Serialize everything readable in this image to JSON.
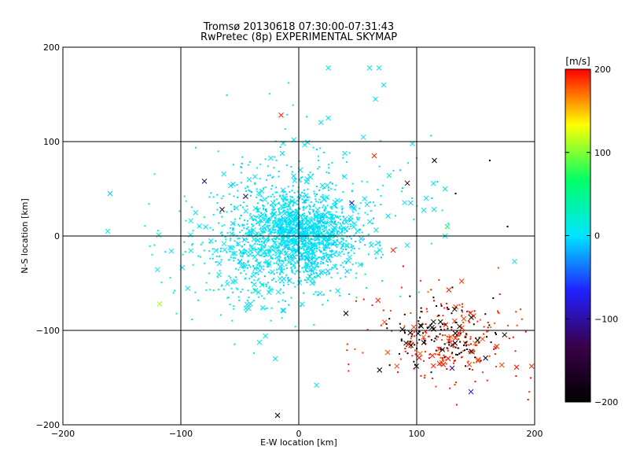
{
  "chart_data": {
    "type": "scatter",
    "title": "Tromsø 20130618 07:30:00-07:31:43",
    "subtitle": "RwPretec (8p) EXPERIMENTAL SKYMAP",
    "xlabel": "E-W location [km]",
    "ylabel": "N-S location [km]",
    "xlim": [
      -200,
      200
    ],
    "ylim": [
      -200,
      200
    ],
    "xticks": [
      -200,
      -100,
      0,
      100,
      200
    ],
    "yticks": [
      -200,
      -100,
      0,
      100,
      200
    ],
    "grid": true,
    "colorbar": {
      "label": "[m/s]",
      "range": [
        -200,
        200
      ],
      "ticks": [
        200,
        100,
        0,
        -100,
        -200
      ],
      "colormap": [
        "#000000",
        "#3a0048",
        "#2020ff",
        "#00e5ff",
        "#00ff66",
        "#ffff00",
        "#ff0000"
      ]
    },
    "marker_types": [
      "dot",
      "cross"
    ],
    "series": [
      {
        "clusters": [
          {
            "center": [
              0,
              0
            ],
            "spread": [
              25,
              22
            ],
            "count": 1300,
            "velocity": 0
          },
          {
            "center": [
              -30,
              -20
            ],
            "spread": [
              40,
              35
            ],
            "count": 400,
            "velocity": 10
          },
          {
            "center": [
              10,
              30
            ],
            "spread": [
              45,
              40
            ],
            "count": 300,
            "velocity": 5
          },
          {
            "center": [
              125,
              -110
            ],
            "spread": [
              30,
              28
            ],
            "count": 230,
            "velocity": 190
          },
          {
            "center": [
              120,
              -105
            ],
            "spread": [
              22,
              18
            ],
            "count": 120,
            "velocity": -195
          }
        ],
        "points": [
          {
            "x": -160,
            "y": 45,
            "v": -10,
            "m": "cross"
          },
          {
            "x": -162,
            "y": 5,
            "v": 10,
            "m": "cross"
          },
          {
            "x": -118,
            "y": -72,
            "v": 110,
            "m": "cross"
          },
          {
            "x": -108,
            "y": -16,
            "v": 10,
            "m": "cross"
          },
          {
            "x": -80,
            "y": 58,
            "v": -120,
            "m": "cross"
          },
          {
            "x": -65,
            "y": 28,
            "v": -170,
            "m": "cross"
          },
          {
            "x": -45,
            "y": 42,
            "v": -120,
            "m": "cross"
          },
          {
            "x": -15,
            "y": 128,
            "v": 190,
            "m": "cross"
          },
          {
            "x": -18,
            "y": -190,
            "v": -200,
            "m": "cross"
          },
          {
            "x": 25,
            "y": 178,
            "v": 10,
            "m": "cross"
          },
          {
            "x": 60,
            "y": 178,
            "v": 10,
            "m": "cross"
          },
          {
            "x": 68,
            "y": 178,
            "v": 10,
            "m": "cross"
          },
          {
            "x": 72,
            "y": 160,
            "v": 10,
            "m": "cross"
          },
          {
            "x": 65,
            "y": 145,
            "v": 10,
            "m": "cross"
          },
          {
            "x": 25,
            "y": 125,
            "v": 10,
            "m": "cross"
          },
          {
            "x": 64,
            "y": 85,
            "v": 190,
            "m": "cross"
          },
          {
            "x": 92,
            "y": 56,
            "v": -170,
            "m": "cross"
          },
          {
            "x": 115,
            "y": 80,
            "v": -200,
            "m": "cross"
          },
          {
            "x": 108,
            "y": 40,
            "v": 10,
            "m": "cross"
          },
          {
            "x": 126,
            "y": 10,
            "v": 70,
            "m": "cross"
          },
          {
            "x": 124,
            "y": 0,
            "v": 10,
            "m": "cross"
          },
          {
            "x": 162,
            "y": 80,
            "v": -200,
            "m": "dot"
          },
          {
            "x": 133,
            "y": 45,
            "v": -200,
            "m": "dot"
          },
          {
            "x": 177,
            "y": 10,
            "v": -200,
            "m": "dot"
          },
          {
            "x": 183,
            "y": -27,
            "v": 10,
            "m": "cross"
          },
          {
            "x": 40,
            "y": -82,
            "v": -200,
            "m": "cross"
          },
          {
            "x": 80,
            "y": -15,
            "v": 190,
            "m": "cross"
          },
          {
            "x": 146,
            "y": -165,
            "v": -80,
            "m": "cross"
          },
          {
            "x": 130,
            "y": -140,
            "v": -120,
            "m": "cross"
          },
          {
            "x": 45,
            "y": 35,
            "v": -90,
            "m": "cross"
          },
          {
            "x": 33,
            "y": -58,
            "v": 10,
            "m": "cross"
          },
          {
            "x": -20,
            "y": -130,
            "v": 10,
            "m": "cross"
          },
          {
            "x": 15,
            "y": -158,
            "v": 10,
            "m": "cross"
          }
        ]
      }
    ]
  }
}
